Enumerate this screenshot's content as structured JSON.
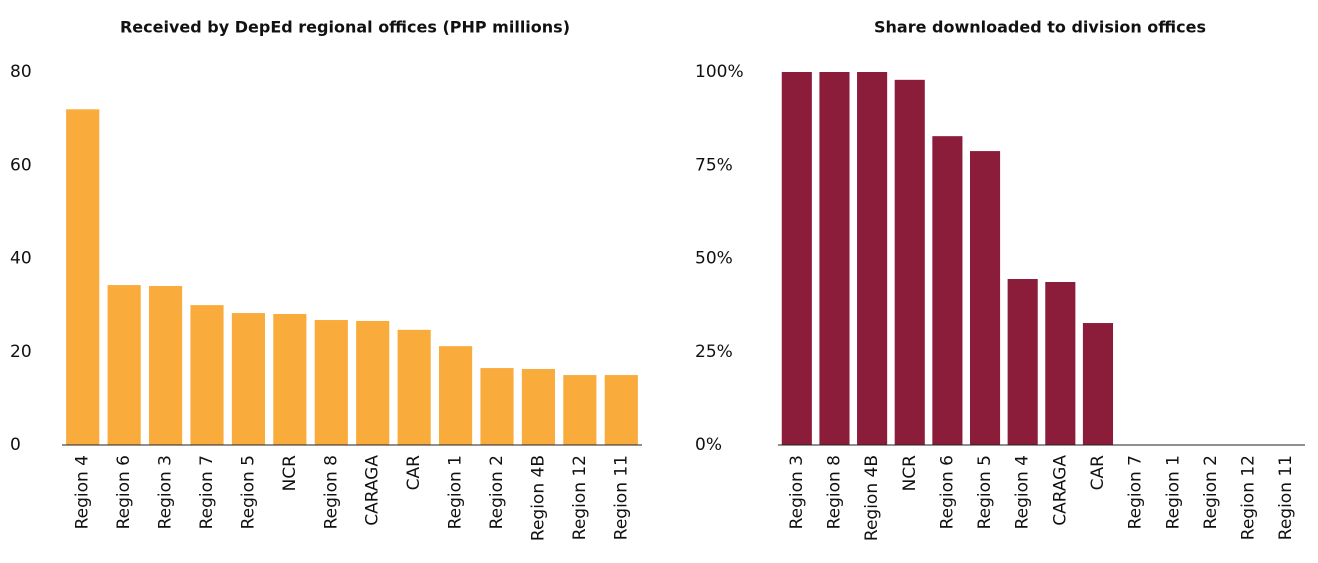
{
  "chart_data": [
    {
      "type": "bar",
      "title": "Received by DepEd regional offices (PHP millions)",
      "categories": [
        "Region 4",
        "Region 6",
        "Region 3",
        "Region 7",
        "Region 5",
        "NCR",
        "Region 8",
        "CARAGA",
        "CAR",
        "Region 1",
        "Region 2",
        "Region 4B",
        "Region 12",
        "Region 11"
      ],
      "values": [
        72,
        34.3,
        34.1,
        30,
        28.3,
        28.1,
        26.8,
        26.6,
        24.7,
        21.2,
        16.5,
        16.3,
        15,
        15
      ],
      "color": "#f9ab3b",
      "ylim": [
        0,
        80
      ],
      "yticks": [
        0,
        20,
        40,
        60,
        80
      ],
      "grid": false
    },
    {
      "type": "bar",
      "title": "Share downloaded to division offices",
      "categories": [
        "Region 3",
        "Region 8",
        "Region 4B",
        "NCR",
        "Region 6",
        "Region 5",
        "Region 4",
        "CARAGA",
        "CAR",
        "Region 7",
        "Region 1",
        "Region 2",
        "Region 12",
        "Region 11"
      ],
      "values": [
        100,
        100,
        100,
        97.9,
        82.8,
        78.8,
        44.5,
        43.7,
        32.7,
        0,
        0,
        0,
        0,
        0
      ],
      "color": "#8b1d3b",
      "ylim": [
        0,
        100
      ],
      "yticks": [
        {
          "value": 0,
          "label": "0%"
        },
        {
          "value": 25,
          "label": "25%"
        },
        {
          "value": 50,
          "label": "50%"
        },
        {
          "value": 75,
          "label": "75%"
        },
        {
          "value": 100,
          "label": "100%"
        }
      ],
      "grid": false
    }
  ]
}
